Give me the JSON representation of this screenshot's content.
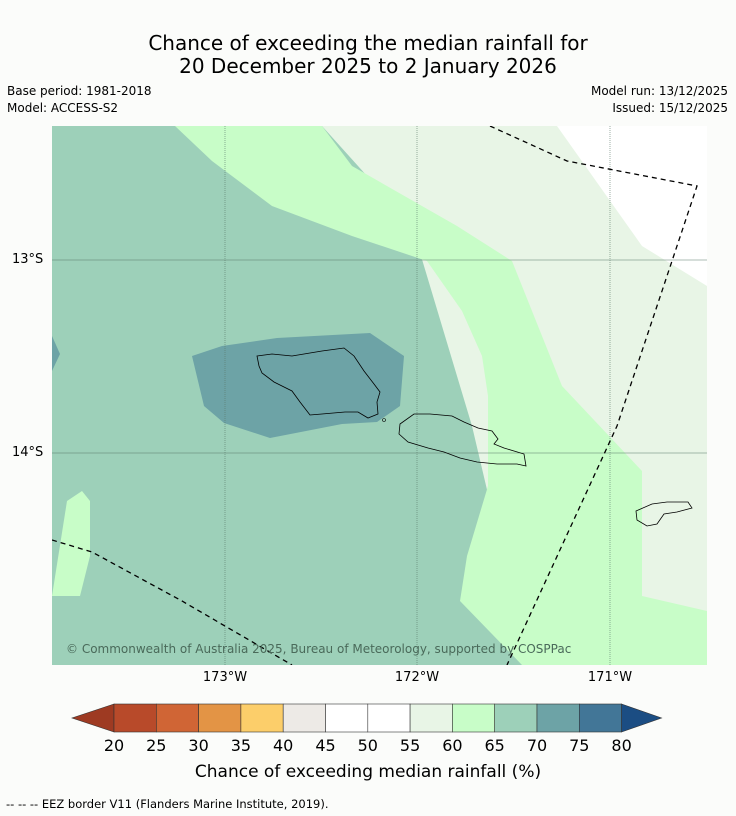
{
  "title": {
    "line1": "Chance of exceeding the median rainfall for",
    "line2": "20 December 2025 to 2 January 2026"
  },
  "meta": {
    "base_period": "Base period: 1981-2018",
    "model": "Model: ACCESS-S2",
    "model_run": "Model run: 13/12/2025",
    "issued": "Issued: 15/12/2025"
  },
  "map": {
    "lat_labels": [
      "13°S",
      "14°S"
    ],
    "lon_labels": [
      "173°W",
      "172°W",
      "171°W"
    ],
    "copyright": "© Commonwealth of Australia 2025, Bureau of Meteorology, supported by COSPPac"
  },
  "colorbar": {
    "ticks": [
      "20",
      "25",
      "30",
      "35",
      "40",
      "45",
      "50",
      "55",
      "60",
      "65",
      "70",
      "75",
      "80"
    ],
    "colors": [
      "#9e3a22",
      "#b84a2a",
      "#d06535",
      "#e39445",
      "#fcce6a",
      "#edeae6",
      "#ffffff",
      "#ffffff",
      "#e8f5e6",
      "#c8fdc8",
      "#9dd0b9",
      "#6da3a6",
      "#427697",
      "#1b4d83"
    ],
    "label": "Chance of exceeding median rainfall (%)"
  },
  "footer": "--  --  -- EEZ border V11 (Flanders Marine Institute, 2019)."
}
